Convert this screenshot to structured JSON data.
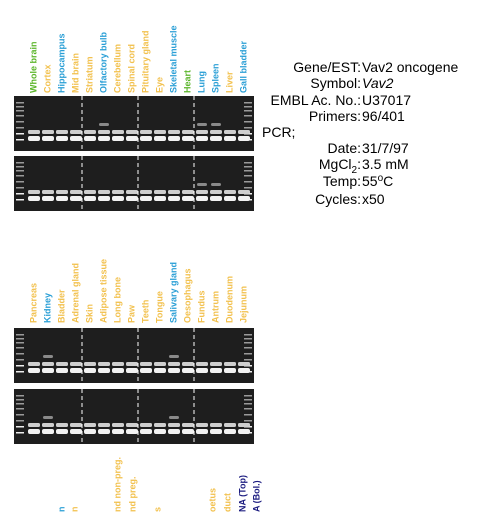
{
  "panels": [
    {
      "lanes": [
        {
          "label": "Whole brain",
          "color": "#5bb52a"
        },
        {
          "label": "Cortex",
          "color": "#f2c14e"
        },
        {
          "label": "Hippocampus",
          "color": "#2a9fd6"
        },
        {
          "label": "Mid brain",
          "color": "#f2c14e"
        },
        {
          "label": "Striatum",
          "color": "#f2c14e"
        },
        {
          "label": "Olfactory bulb",
          "color": "#2a9fd6"
        },
        {
          "label": "Cerebellum",
          "color": "#f2c14e"
        },
        {
          "label": "Spinal cord",
          "color": "#f2c14e"
        },
        {
          "label": "Pituitary gland",
          "color": "#f2c14e"
        },
        {
          "label": "Eye",
          "color": "#f2c14e"
        },
        {
          "label": "Skeletal muscle",
          "color": "#2a9fd6"
        },
        {
          "label": "Heart",
          "color": "#5bb52a"
        },
        {
          "label": "Lung",
          "color": "#2a9fd6"
        },
        {
          "label": "Spleen",
          "color": "#2a9fd6"
        },
        {
          "label": "Liver",
          "color": "#f2c14e"
        },
        {
          "label": "Gall bladder",
          "color": "#2a9fd6"
        }
      ]
    },
    {
      "lanes": [
        {
          "label": "Pancreas",
          "color": "#f2c14e"
        },
        {
          "label": "Kidney",
          "color": "#2a9fd6"
        },
        {
          "label": "Bladder",
          "color": "#f2c14e"
        },
        {
          "label": "Adrenal gland",
          "color": "#f2c14e"
        },
        {
          "label": "Skin",
          "color": "#f2c14e"
        },
        {
          "label": "Adipose tissue",
          "color": "#f2c14e"
        },
        {
          "label": "Long bone",
          "color": "#f2c14e"
        },
        {
          "label": "Paw",
          "color": "#f2c14e"
        },
        {
          "label": "Teeth",
          "color": "#f2c14e"
        },
        {
          "label": "Tongue",
          "color": "#f2c14e"
        },
        {
          "label": "Salivary gland",
          "color": "#2a9fd6"
        },
        {
          "label": "Oesophagus",
          "color": "#f2c14e"
        },
        {
          "label": "Fundus",
          "color": "#f2c14e"
        },
        {
          "label": "Antrum",
          "color": "#f2c14e"
        },
        {
          "label": "Duodenum",
          "color": "#f2c14e"
        },
        {
          "label": "Jejunum",
          "color": "#f2c14e"
        }
      ]
    }
  ],
  "partial_lanes": [
    {
      "label": "n",
      "color": "#2a9fd6"
    },
    {
      "label": "n",
      "color": "#f2c14e"
    },
    {
      "label": "nd non-preg.",
      "color": "#f2c14e"
    },
    {
      "label": "nd preg.",
      "color": "#f2c14e"
    },
    {
      "label": "s",
      "color": "#f2c14e"
    },
    {
      "label": "oetus",
      "color": "#f2c14e"
    },
    {
      "label": "duct",
      "color": "#f2c14e"
    },
    {
      "label": "NA (Top)",
      "color": "#1c1c80"
    },
    {
      "label": "A (Bol.)",
      "color": "#1c1c80"
    }
  ],
  "info": {
    "gene": {
      "label": "Gene/EST:",
      "value": "Vav2 oncogene"
    },
    "symbol": {
      "label": "Symbol:",
      "value": "Vav2"
    },
    "embl": {
      "label": "EMBL Ac. No.:",
      "value": "U37017"
    },
    "primers": {
      "label": "Primers:",
      "value": "96/401"
    },
    "pcr": "PCR;",
    "date": {
      "label": "Date:",
      "value": "31/7/97"
    },
    "mgcl": {
      "label": "MgCl",
      "label_sub": "2",
      "label_end": ":",
      "value": "3.5 mM"
    },
    "temp": {
      "label": "Temp:",
      "value": "55",
      "value_sup": "o",
      "value_end": "C"
    },
    "cycles": {
      "label": "Cycles:",
      "value": "x50"
    }
  }
}
